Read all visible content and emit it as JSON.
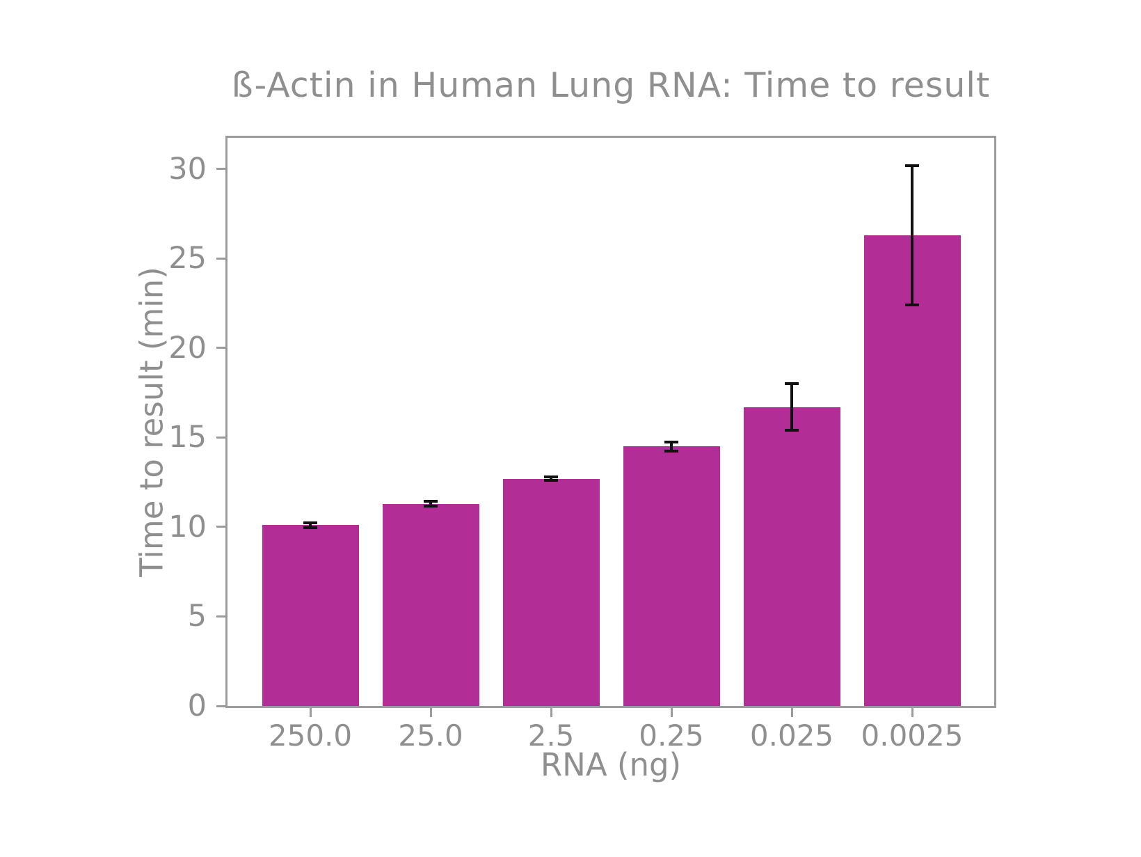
{
  "figure": {
    "background": "#ffffff"
  },
  "colors": {
    "bar": "#b32d96",
    "error_bar": "#111111",
    "text": "#8f8f8f",
    "spine": "#9c9c9c"
  },
  "chart_data": {
    "type": "bar",
    "title": "ß-Actin in Human Lung RNA: Time to result",
    "xlabel": "RNA (ng)",
    "ylabel": "Time to result (min)",
    "categories": [
      "250.0",
      "25.0",
      "2.5",
      "0.25",
      "0.025",
      "0.0025"
    ],
    "values": [
      10.1,
      11.3,
      12.7,
      14.5,
      16.7,
      26.3
    ],
    "errors": [
      0.15,
      0.12,
      0.1,
      0.25,
      1.3,
      3.9
    ],
    "yticks": [
      0,
      5,
      10,
      15,
      20,
      25,
      30
    ],
    "ylim": [
      0,
      31.75
    ],
    "grid": false,
    "legend": null,
    "bar_color": "#b32d96",
    "error_color": "#111111"
  }
}
